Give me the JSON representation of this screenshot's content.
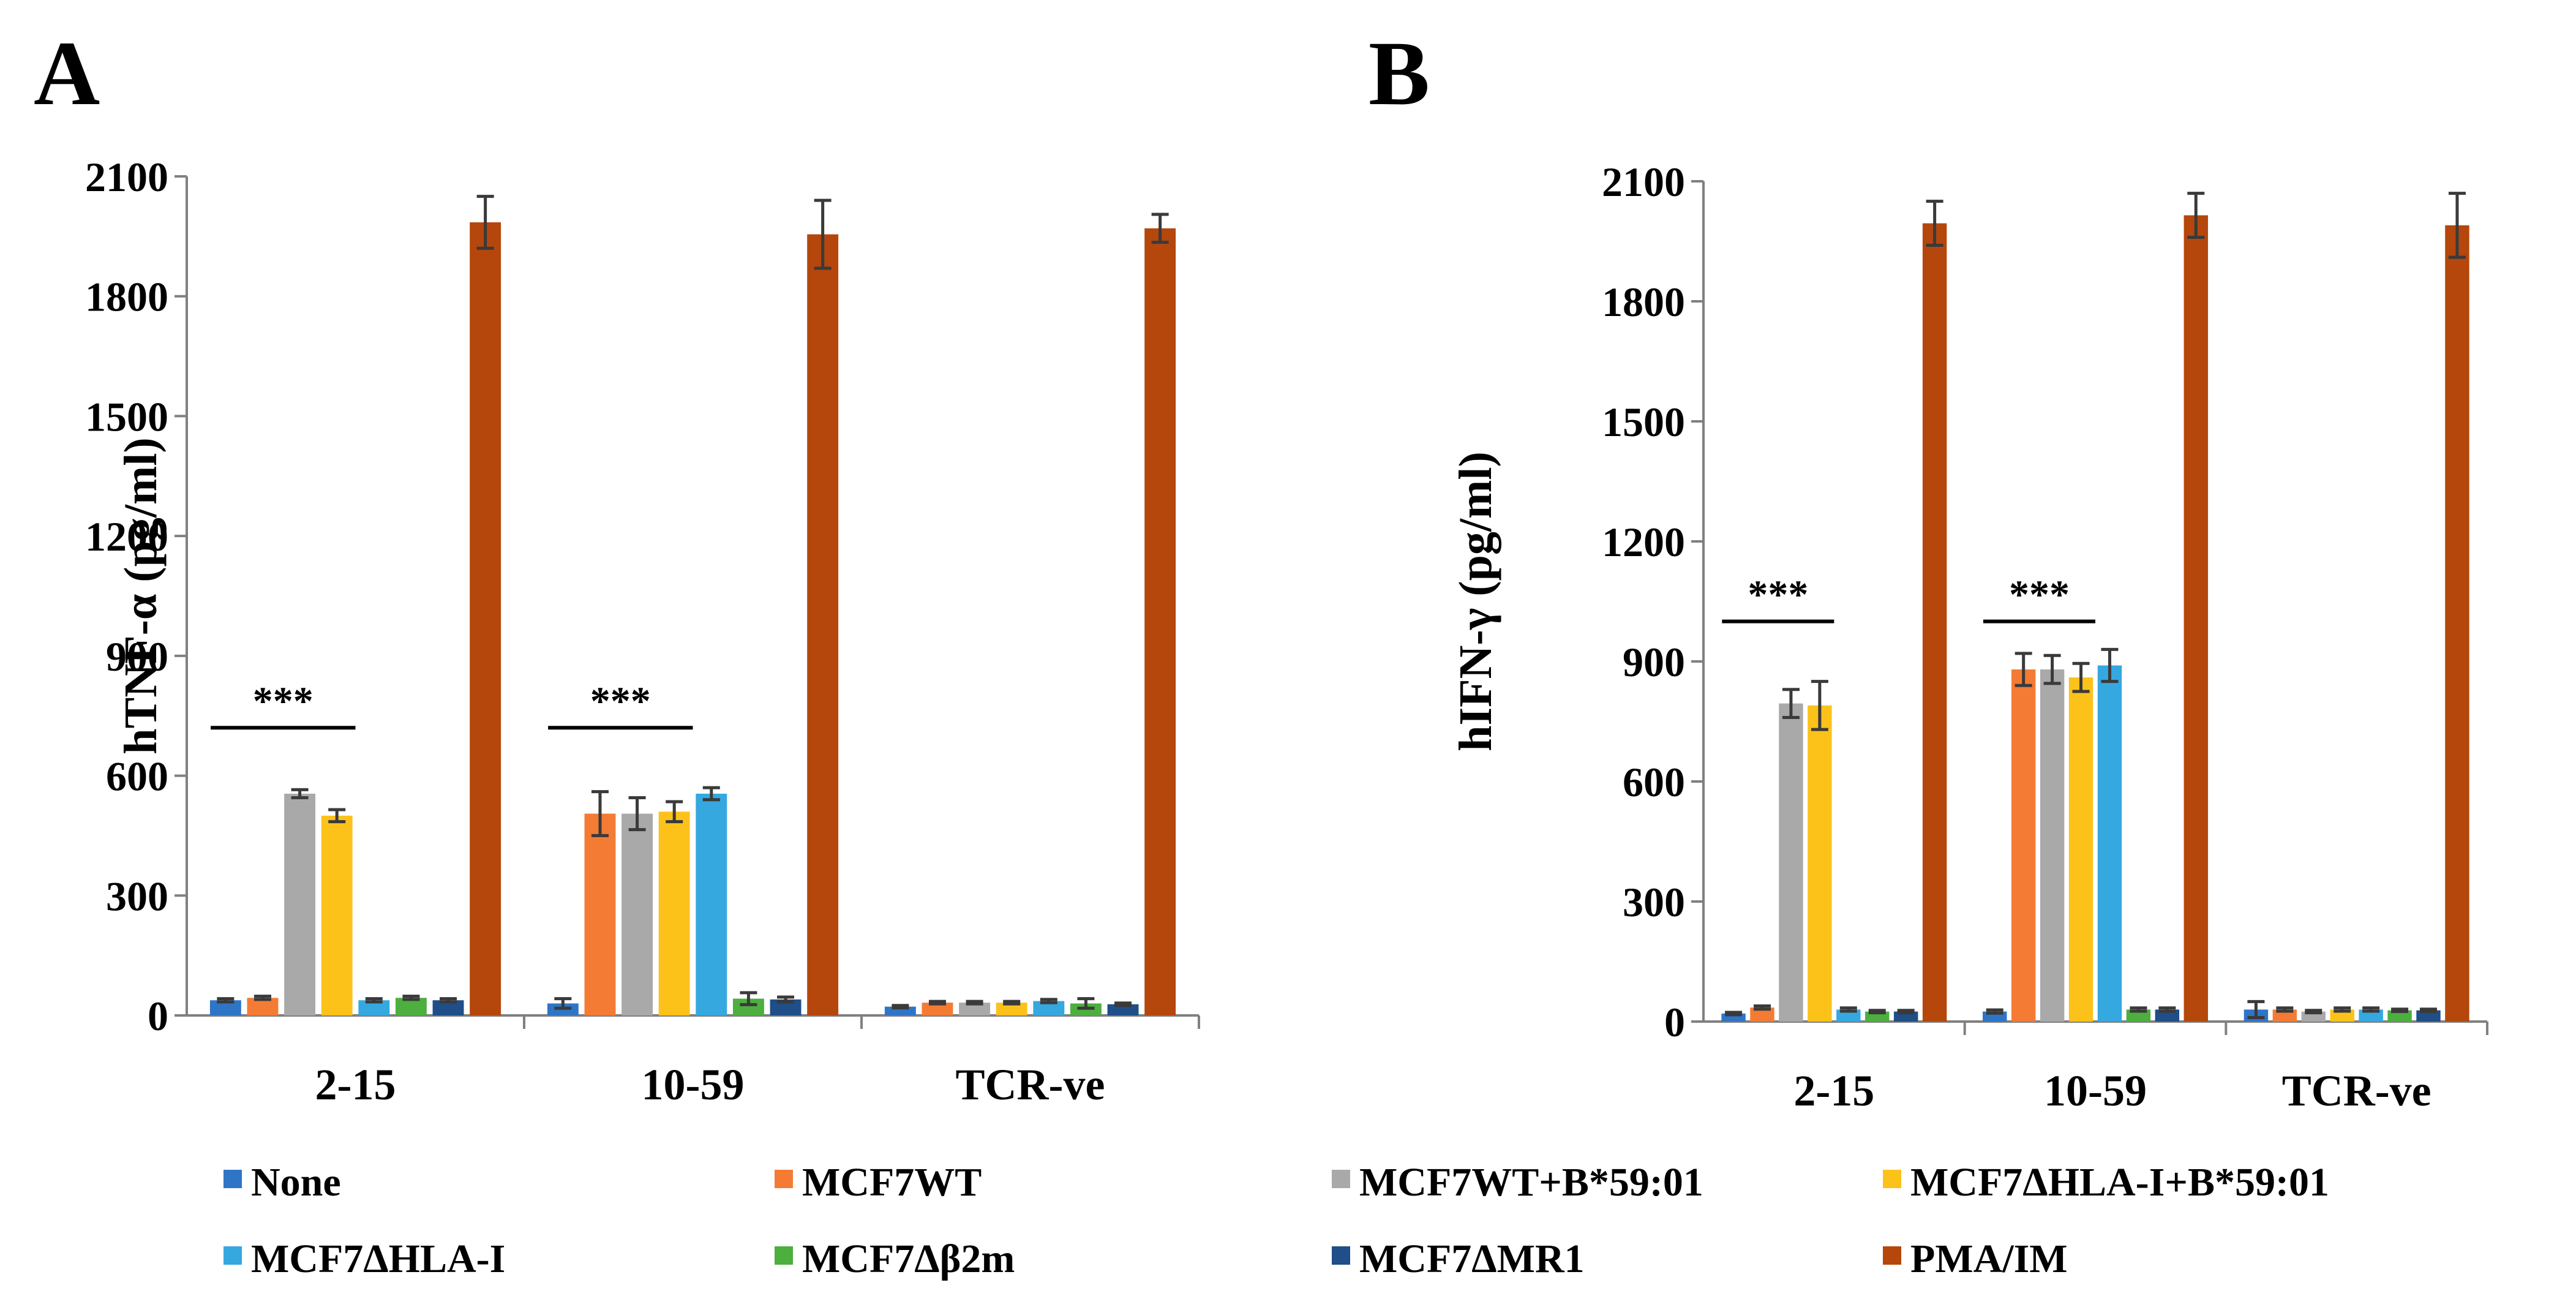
{
  "legend": [
    {
      "label": "None",
      "color": "#2e75c6"
    },
    {
      "label": "MCF7WT",
      "color": "#f47b34"
    },
    {
      "label": "MCF7WT+B*59:01",
      "color": "#a9a9a9"
    },
    {
      "label": "MCF7ΔHLA-I+B*59:01",
      "color": "#fcc21a"
    },
    {
      "label": "MCF7ΔHLA-I",
      "color": "#35a8e0"
    },
    {
      "label": "MCF7Δβ2m",
      "color": "#4caf3e"
    },
    {
      "label": "MCF7ΔMR1",
      "color": "#1f4e88"
    },
    {
      "label": "PMA/IM",
      "color": "#b5470c"
    }
  ],
  "chart_data": [
    {
      "panel": "A",
      "type": "bar",
      "ylabel": "hTNF-α (pg/ml)",
      "ylim": [
        0,
        2100
      ],
      "yticks": [
        "0",
        "300",
        "600",
        "900",
        "1200",
        "1500",
        "1800",
        "2100"
      ],
      "categories": [
        "2-15",
        "10-59",
        "TCR-ve"
      ],
      "series": [
        {
          "name": "None",
          "values": [
            38,
            30,
            22
          ],
          "errors": [
            4,
            12,
            3
          ]
        },
        {
          "name": "MCF7WT",
          "values": [
            44,
            505,
            32
          ],
          "errors": [
            4,
            55,
            3
          ]
        },
        {
          "name": "MCF7WT+B*59:01",
          "values": [
            555,
            505,
            32
          ],
          "errors": [
            10,
            40,
            3
          ]
        },
        {
          "name": "MCF7ΔHLA-I+B*59:01",
          "values": [
            500,
            510,
            32
          ],
          "errors": [
            15,
            25,
            3
          ]
        },
        {
          "name": "MCF7ΔHLA-I",
          "values": [
            38,
            555,
            36
          ],
          "errors": [
            4,
            15,
            4
          ]
        },
        {
          "name": "MCF7Δβ2m",
          "values": [
            44,
            42,
            30
          ],
          "errors": [
            4,
            15,
            12
          ]
        },
        {
          "name": "MCF7ΔMR1",
          "values": [
            38,
            40,
            28
          ],
          "errors": [
            4,
            6,
            3
          ]
        },
        {
          "name": "PMA/IM",
          "values": [
            1985,
            1955,
            1970
          ],
          "errors": [
            65,
            85,
            35
          ]
        }
      ],
      "significance": [
        {
          "label": "***",
          "category": "2-15",
          "value": 720
        },
        {
          "label": "***",
          "category": "10-59",
          "value": 720
        }
      ]
    },
    {
      "panel": "B",
      "type": "bar",
      "ylabel": "hIFN-γ (pg/ml)",
      "ylim": [
        0,
        2100
      ],
      "yticks": [
        "0",
        "300",
        "600",
        "900",
        "1200",
        "1500",
        "1800",
        "2100"
      ],
      "categories": [
        "2-15",
        "10-59",
        "TCR-ve"
      ],
      "series": [
        {
          "name": "None",
          "values": [
            20,
            25,
            30
          ],
          "errors": [
            3,
            4,
            20
          ]
        },
        {
          "name": "MCF7WT",
          "values": [
            35,
            880,
            30
          ],
          "errors": [
            4,
            40,
            4
          ]
        },
        {
          "name": "MCF7WT+B*59:01",
          "values": [
            795,
            880,
            25
          ],
          "errors": [
            35,
            35,
            3
          ]
        },
        {
          "name": "MCF7ΔHLA-I+B*59:01",
          "values": [
            790,
            860,
            30
          ],
          "errors": [
            60,
            35,
            4
          ]
        },
        {
          "name": "MCF7ΔHLA-I",
          "values": [
            30,
            890,
            30
          ],
          "errors": [
            4,
            40,
            4
          ]
        },
        {
          "name": "MCF7Δβ2m",
          "values": [
            25,
            30,
            28
          ],
          "errors": [
            3,
            4,
            3
          ]
        },
        {
          "name": "MCF7ΔMR1",
          "values": [
            25,
            30,
            28
          ],
          "errors": [
            3,
            4,
            3
          ]
        },
        {
          "name": "PMA/IM",
          "values": [
            1995,
            2015,
            1990
          ],
          "errors": [
            55,
            55,
            80
          ]
        }
      ],
      "significance": [
        {
          "label": "***",
          "category": "2-15",
          "value": 1000
        },
        {
          "label": "***",
          "category": "10-59",
          "value": 1000
        }
      ]
    }
  ]
}
